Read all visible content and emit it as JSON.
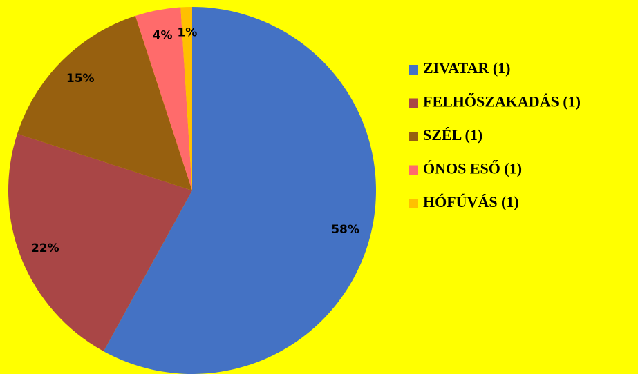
{
  "chart_data": {
    "type": "pie",
    "categories": [
      "ZIVATAR (1)",
      "FELHŐSZAKADÁS (1)",
      "SZÉL (1)",
      "ÓNOS ESŐ (1)",
      "HÓFÚVÁS (1)"
    ],
    "values": [
      58,
      22,
      15,
      4,
      1
    ],
    "value_labels": [
      "58%",
      "22%",
      "15%",
      "4%",
      "1%"
    ],
    "colors": [
      "#4472c4",
      "#a94646",
      "#97600f",
      "#ff6b6b",
      "#ffc000"
    ],
    "legend": "right"
  }
}
